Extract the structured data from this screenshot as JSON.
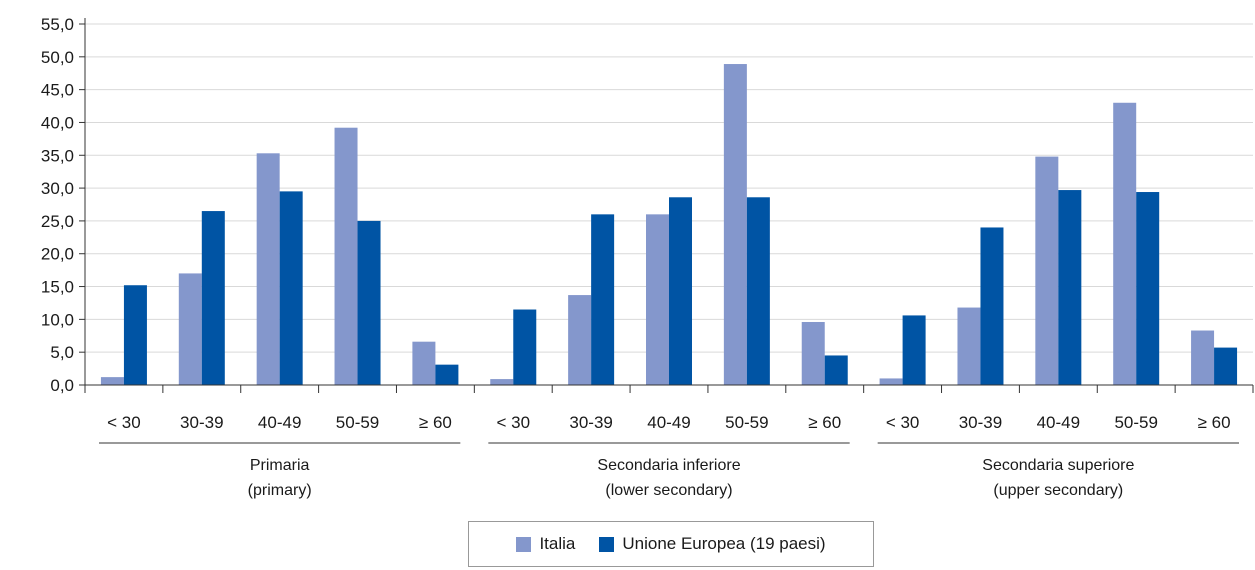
{
  "chart_data": {
    "type": "bar",
    "title": "",
    "xlabel": "",
    "ylabel": "",
    "ylim": [
      0,
      55
    ],
    "yticks": [
      "0,0",
      "5,0",
      "10,0",
      "15,0",
      "20,0",
      "25,0",
      "30,0",
      "35,0",
      "40,0",
      "45,0",
      "50,0",
      "55,0"
    ],
    "grid": true,
    "legend_position": "bottom",
    "groups": [
      {
        "label": "Primaria",
        "sublabel": "(primary)"
      },
      {
        "label": "Secondaria inferiore",
        "sublabel": "(lower secondary)"
      },
      {
        "label": "Secondaria superiore",
        "sublabel": "(upper secondary)"
      }
    ],
    "categories": [
      "< 30",
      "30-39",
      "40-49",
      "50-59",
      "≥ 60",
      "< 30",
      "30-39",
      "40-49",
      "50-59",
      "≥ 60",
      "< 30",
      "30-39",
      "40-49",
      "50-59",
      "≥ 60"
    ],
    "series": [
      {
        "name": "Italia",
        "color": "#8497cc",
        "values": [
          1.2,
          17.0,
          35.3,
          39.2,
          6.6,
          0.9,
          13.7,
          26.0,
          48.9,
          9.6,
          1.0,
          11.8,
          34.8,
          43.0,
          8.3
        ]
      },
      {
        "name": "Unione Europea (19 paesi)",
        "color": "#0054a4",
        "values": [
          15.2,
          26.5,
          29.5,
          25.0,
          3.1,
          11.5,
          26.0,
          28.6,
          28.6,
          4.5,
          10.6,
          24.0,
          29.7,
          29.4,
          5.7
        ]
      }
    ]
  }
}
